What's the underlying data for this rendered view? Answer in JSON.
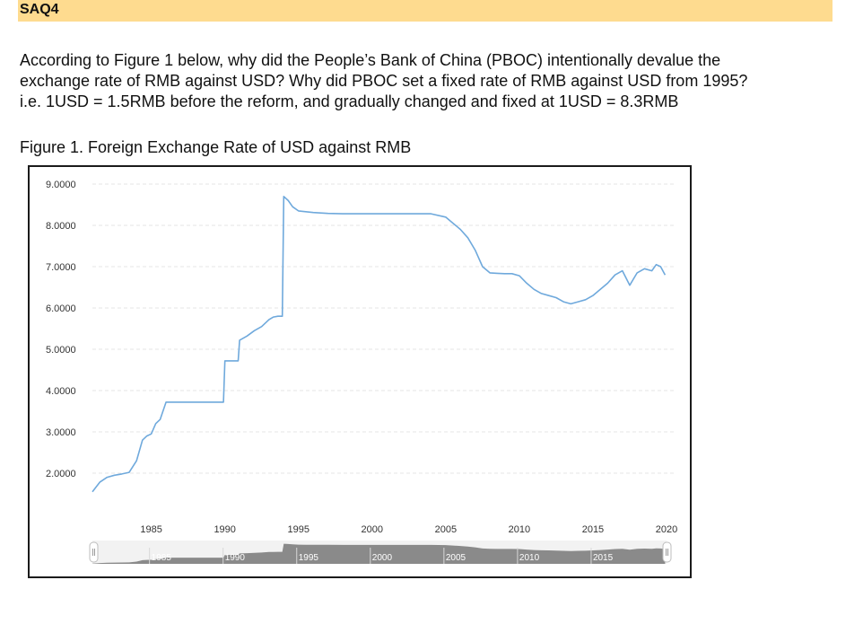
{
  "header": {
    "title": "SAQ4"
  },
  "question": {
    "lines": [
      "According to Figure 1 below, why did the People’s Bank of China (PBOC) intentionally devalue the",
      "exchange rate of RMB against USD? Why did PBOC set a fixed rate of RMB against USD from 1995?",
      "i.e. 1USD = 1.5RMB before the reform, and gradually changed and fixed at 1USD = 8.3RMB"
    ]
  },
  "figure_caption": "Figure 1. Foreign Exchange Rate of USD against RMB",
  "chart_data": {
    "type": "line",
    "title": "",
    "xlabel": "",
    "ylabel": "",
    "xlim": [
      1981,
      2020
    ],
    "ylim": [
      1.5,
      9.2
    ],
    "y_ticks": [
      "9.0000",
      "8.0000",
      "7.0000",
      "6.0000",
      "5.0000",
      "4.0000",
      "3.0000",
      "2.0000"
    ],
    "x_ticks": [
      "1985",
      "1990",
      "1995",
      "2000",
      "2005",
      "2010",
      "2015",
      "2020"
    ],
    "navigator_labels": [
      "1985",
      "1990",
      "1995",
      "2000",
      "2005",
      "2010",
      "2015"
    ],
    "grid": true,
    "line_color": "#6fa9dc",
    "series": [
      {
        "x": [
          1981.0,
          1981.5,
          1982.0,
          1982.5,
          1983.0,
          1983.5,
          1984.0,
          1984.4,
          1984.7,
          1985.0,
          1985.3,
          1985.6,
          1986.0,
          1986.5,
          1987.0,
          1988.0,
          1989.0,
          1989.9,
          1990.0,
          1990.9,
          1991.0,
          1991.5,
          1992.0,
          1992.5,
          1993.0,
          1993.3,
          1993.6,
          1993.9,
          1994.0,
          1994.3,
          1994.6,
          1995.0,
          1995.5,
          1996.0,
          1997.0,
          1998.0,
          1999.0,
          2000.0,
          2001.0,
          2002.0,
          2003.0,
          2004.0,
          2005.0,
          2005.5,
          2006.0,
          2006.5,
          2007.0,
          2007.5,
          2008.0,
          2008.5,
          2009.0,
          2009.5,
          2010.0,
          2010.5,
          2011.0,
          2011.5,
          2012.0,
          2012.5,
          2013.0,
          2013.5,
          2014.0,
          2014.5,
          2015.0,
          2015.5,
          2016.0,
          2016.5,
          2017.0,
          2017.5,
          2018.0,
          2018.5,
          2019.0,
          2019.3,
          2019.6,
          2019.9
        ],
        "y": [
          1.55,
          1.78,
          1.9,
          1.95,
          1.98,
          2.02,
          2.3,
          2.8,
          2.9,
          2.95,
          3.2,
          3.3,
          3.72,
          3.72,
          3.72,
          3.72,
          3.72,
          3.72,
          4.72,
          4.72,
          5.22,
          5.32,
          5.45,
          5.55,
          5.72,
          5.78,
          5.8,
          5.8,
          8.7,
          8.6,
          8.45,
          8.35,
          8.33,
          8.31,
          8.29,
          8.28,
          8.28,
          8.28,
          8.28,
          8.28,
          8.28,
          8.28,
          8.2,
          8.05,
          7.9,
          7.7,
          7.4,
          7.0,
          6.85,
          6.84,
          6.83,
          6.83,
          6.78,
          6.6,
          6.45,
          6.35,
          6.3,
          6.25,
          6.15,
          6.1,
          6.15,
          6.2,
          6.3,
          6.45,
          6.6,
          6.8,
          6.9,
          6.55,
          6.85,
          6.95,
          6.9,
          7.05,
          7.0,
          6.8
        ]
      }
    ]
  }
}
